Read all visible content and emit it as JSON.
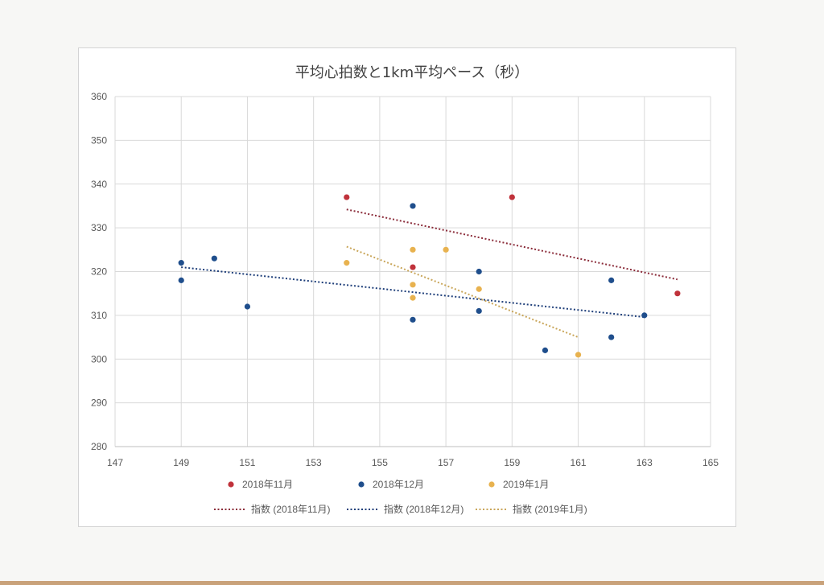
{
  "colors": {
    "series_nov": "#c0323b",
    "series_dec": "#1f4e8c",
    "series_jan": "#e8b24f",
    "grid": "#d9d9d9",
    "axis_text": "#595959"
  },
  "chart_data": {
    "type": "scatter",
    "title": "平均心拍数と1km平均ペース（秒）",
    "xlabel": "",
    "ylabel": "",
    "xlim": [
      147,
      165
    ],
    "ylim": [
      280,
      360
    ],
    "x_ticks": [
      147,
      149,
      151,
      153,
      155,
      157,
      159,
      161,
      163,
      165
    ],
    "y_ticks": [
      280,
      290,
      300,
      310,
      320,
      330,
      340,
      350,
      360
    ],
    "grid": true,
    "legend_position": "bottom",
    "series": [
      {
        "name": "2018年11月",
        "color": "#c0323b",
        "points": [
          [
            154,
            337
          ],
          [
            156,
            321
          ],
          [
            159,
            337
          ],
          [
            164,
            315
          ]
        ]
      },
      {
        "name": "2018年12月",
        "color": "#1f4e8c",
        "points": [
          [
            149,
            322
          ],
          [
            149,
            318
          ],
          [
            150,
            323
          ],
          [
            151,
            312
          ],
          [
            156,
            335
          ],
          [
            156,
            309
          ],
          [
            158,
            320
          ],
          [
            158,
            311
          ],
          [
            160,
            302
          ],
          [
            162,
            318
          ],
          [
            162,
            305
          ],
          [
            163,
            310
          ]
        ]
      },
      {
        "name": "2019年1月",
        "color": "#e8b24f",
        "points": [
          [
            154,
            322
          ],
          [
            156,
            325
          ],
          [
            156,
            317
          ],
          [
            156,
            314
          ],
          [
            157,
            325
          ],
          [
            158,
            316
          ],
          [
            161,
            301
          ]
        ]
      }
    ],
    "trendlines": [
      {
        "name": "指数 (2018年11月)",
        "color": "#8b2c3a",
        "x": [
          154,
          164
        ],
        "y": [
          334.2,
          318.2
        ]
      },
      {
        "name": "指数 (2018年12月)",
        "color": "#1f3f7a",
        "x": [
          149,
          163
        ],
        "y": [
          321,
          309.6
        ]
      },
      {
        "name": "指数 (2019年1月)",
        "color": "#c9a65a",
        "x": [
          154,
          161
        ],
        "y": [
          325.7,
          305
        ]
      }
    ]
  }
}
